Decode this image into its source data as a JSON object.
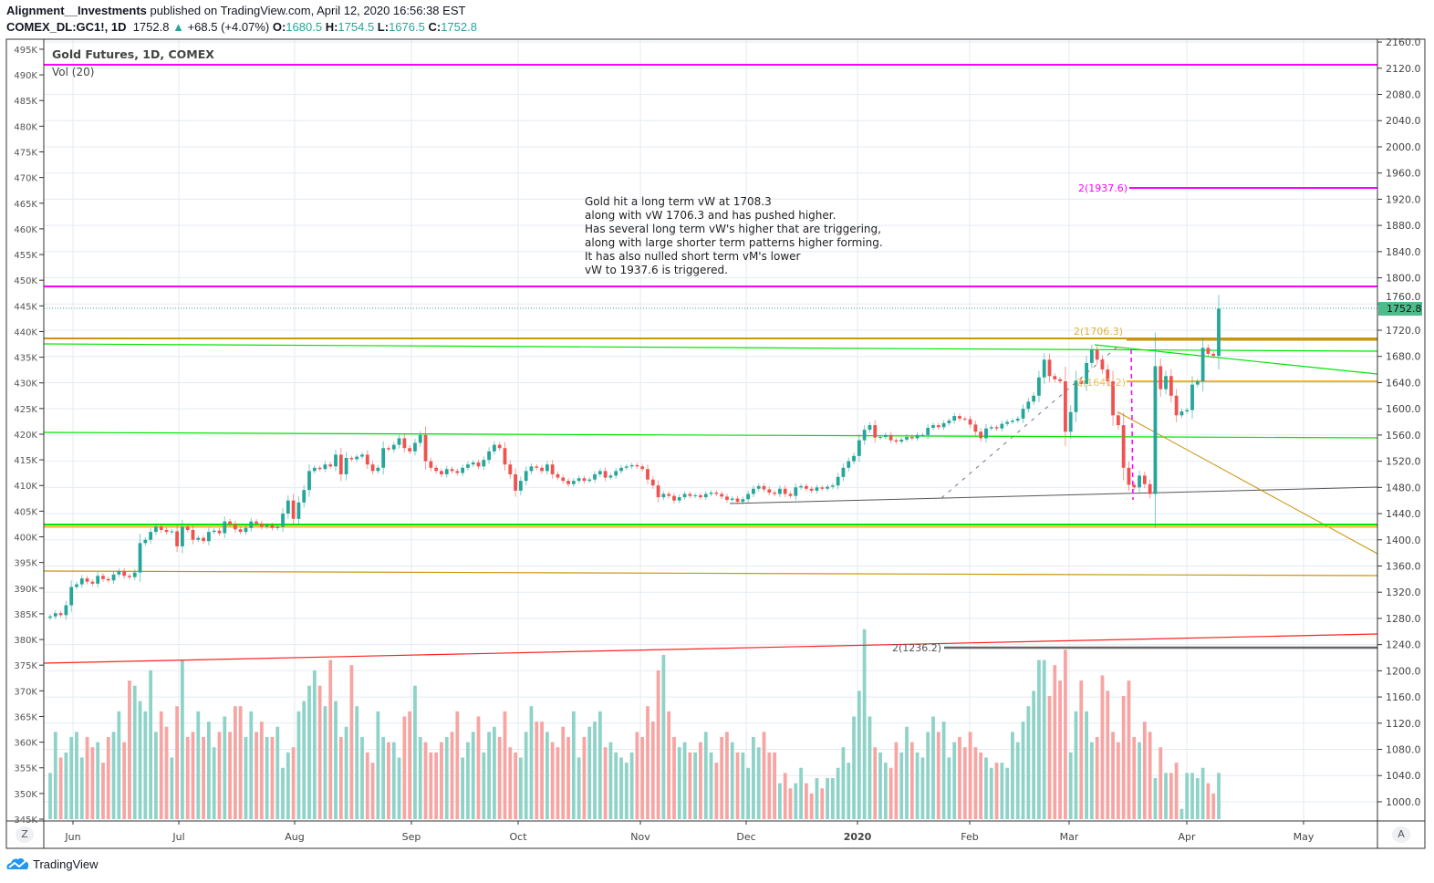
{
  "header": {
    "author": "Alignment__Investments",
    "published": "published on TradingView.com, April 12, 2020 16:56:38 EST",
    "symbol": "COMEX_DL:GC1!, 1D",
    "last": "1752.8",
    "change": "+68.5 (+4.07%)",
    "o_label": "O:",
    "o": "1680.5",
    "h_label": "H:",
    "h": "1754.5",
    "l_label": "L:",
    "l": "1676.5",
    "c_label": "C:",
    "c": "1752.8"
  },
  "legend": {
    "title": "Gold Futures, 1D, COMEX",
    "volume": "Vol (20)"
  },
  "annotation": "Gold hit a long term vW at 1708.3\nalong with vW 1706.3 and has pushed higher.\nHas several long term vW's higher that are triggering,\nalong with large shorter term patterns higher forming.\nIt has also nulled short term vM's lower\nvW to 1937.6 is triggered.",
  "level_labels": {
    "l1937": "2(1937.6)",
    "l1706": "2(1706.3)",
    "l1641": "2(1641.2)",
    "l1236": "2(1236.2)"
  },
  "price_badge": "1752.8",
  "buttons": {
    "z": "Z",
    "a": "A"
  },
  "footer": {
    "brand": "TradingView"
  },
  "colors": {
    "up": "#26a69a",
    "down": "#ef5350",
    "magenta": "#ff00ff",
    "gold": "#c8960c",
    "green_line": "#00e600",
    "red_line": "#ff2222"
  },
  "chart_data": {
    "type": "candlestick",
    "title": "Gold Futures, 1D, COMEX",
    "right_axis": {
      "ticks": [
        "2160.0",
        "2120.0",
        "2080.0",
        "2040.0",
        "2000.0",
        "1960.0",
        "1920.0",
        "1880.0",
        "1840.0",
        "1800.0",
        "1760.0",
        "1720.0",
        "1680.0",
        "1640.0",
        "1600.0",
        "1560.0",
        "1520.0",
        "1480.0",
        "1440.0",
        "1400.0",
        "1360.0",
        "1320.0",
        "1280.0",
        "1240.0",
        "1200.0",
        "1160.0",
        "1120.0",
        "1080.0",
        "1040.0",
        "1000.0"
      ],
      "range": [
        1000,
        2160
      ]
    },
    "left_axis": {
      "ticks": [
        "495K",
        "490K",
        "485K",
        "480K",
        "475K",
        "470K",
        "465K",
        "460K",
        "455K",
        "450K",
        "445K",
        "440K",
        "435K",
        "430K",
        "425K",
        "420K",
        "415K",
        "410K",
        "405K",
        "400K",
        "395K",
        "390K",
        "385K",
        "380K",
        "375K",
        "370K",
        "365K",
        "360K",
        "355K",
        "350K",
        "345K"
      ],
      "range": [
        345,
        495
      ]
    },
    "x_ticks": [
      "Jun",
      "Jul",
      "Aug",
      "Sep",
      "Oct",
      "Nov",
      "Dec",
      "2020",
      "Feb",
      "Mar",
      "Apr",
      "May"
    ],
    "grid": true,
    "closes": [
      1283,
      1288,
      1285,
      1300,
      1328,
      1332,
      1341,
      1336,
      1333,
      1345,
      1340,
      1338,
      1347,
      1352,
      1345,
      1343,
      1350,
      1395,
      1400,
      1412,
      1420,
      1415,
      1412,
      1413,
      1390,
      1420,
      1415,
      1400,
      1403,
      1398,
      1412,
      1414,
      1410,
      1428,
      1424,
      1416,
      1412,
      1418,
      1428,
      1425,
      1420,
      1422,
      1418,
      1420,
      1440,
      1460,
      1432,
      1457,
      1476,
      1505,
      1510,
      1508,
      1515,
      1512,
      1530,
      1500,
      1525,
      1523,
      1527,
      1530,
      1515,
      1505,
      1510,
      1540,
      1538,
      1545,
      1555,
      1540,
      1535,
      1548,
      1560,
      1520,
      1510,
      1505,
      1500,
      1508,
      1505,
      1502,
      1510,
      1515,
      1518,
      1512,
      1522,
      1535,
      1545,
      1540,
      1515,
      1500,
      1475,
      1490,
      1505,
      1512,
      1510,
      1505,
      1515,
      1500,
      1495,
      1490,
      1485,
      1490,
      1494,
      1490,
      1492,
      1500,
      1505,
      1495,
      1498,
      1505,
      1510,
      1512,
      1514,
      1512,
      1508,
      1492,
      1483,
      1465,
      1470,
      1467,
      1460,
      1465,
      1470,
      1467,
      1468,
      1465,
      1470,
      1472,
      1470,
      1466,
      1461,
      1463,
      1458,
      1462,
      1470,
      1478,
      1482,
      1477,
      1472,
      1470,
      1478,
      1470,
      1467,
      1480,
      1482,
      1478,
      1475,
      1480,
      1478,
      1481,
      1483,
      1496,
      1510,
      1520,
      1528,
      1552,
      1568,
      1575,
      1556,
      1557,
      1560,
      1552,
      1550,
      1553,
      1557,
      1555,
      1560,
      1560,
      1571,
      1575,
      1572,
      1578,
      1582,
      1589,
      1585,
      1584,
      1576,
      1565,
      1555,
      1570,
      1572,
      1570,
      1577,
      1580,
      1582,
      1585,
      1600,
      1611,
      1620,
      1648,
      1675,
      1650,
      1645,
      1642,
      1565,
      1595,
      1643,
      1638,
      1670,
      1690,
      1675,
      1660,
      1642,
      1590,
      1575,
      1510,
      1484,
      1480,
      1498,
      1485,
      1470,
      1665,
      1630,
      1650,
      1620,
      1590,
      1596,
      1598,
      1637,
      1642,
      1693,
      1684,
      1681,
      1752.8
    ],
    "volume_k": [
      354,
      362,
      357,
      358,
      361,
      362,
      357,
      361,
      359,
      360,
      356,
      361,
      362,
      366,
      360,
      372,
      371,
      368,
      366,
      374,
      362,
      366,
      363,
      357,
      367,
      376,
      361,
      362,
      366,
      361,
      364,
      359,
      362,
      365,
      362,
      367,
      367,
      361,
      366,
      362,
      364,
      361,
      361,
      363,
      355,
      358,
      359,
      366,
      368,
      371,
      374,
      371,
      367,
      376,
      368,
      361,
      363,
      375,
      367,
      361,
      358,
      356,
      366,
      361,
      360,
      360,
      357,
      365,
      366,
      371,
      361,
      360,
      358,
      358,
      360,
      361,
      362,
      366,
      357,
      360,
      362,
      365,
      358,
      362,
      363,
      361,
      366,
      359,
      358,
      357,
      362,
      367,
      364,
      364,
      362,
      360,
      359,
      363,
      361,
      366,
      357,
      361,
      363,
      364,
      366,
      359,
      360,
      358,
      357,
      356,
      358,
      362,
      361,
      367,
      364,
      374,
      377,
      366,
      361,
      359,
      360,
      358,
      358,
      360,
      362,
      358,
      356,
      361,
      362,
      360,
      358,
      358,
      355,
      361,
      359,
      362,
      358,
      358,
      352,
      354,
      351,
      352,
      355,
      352,
      350,
      353,
      351,
      353,
      353,
      355,
      359,
      356,
      365,
      370,
      382,
      365,
      359,
      358,
      356,
      355,
      360,
      358,
      363,
      360,
      358,
      357,
      362,
      365,
      362,
      364,
      357,
      360,
      361,
      359,
      362,
      359,
      358,
      357,
      355,
      356,
      356,
      355,
      362,
      360,
      364,
      367,
      370,
      376,
      376,
      369,
      375,
      372,
      378,
      358,
      366,
      372,
      366,
      360,
      361,
      373,
      370,
      362,
      360,
      369,
      372,
      361,
      360,
      364,
      362,
      353,
      359,
      354,
      354,
      356,
      347,
      354,
      354,
      353,
      355,
      352,
      350,
      354
    ],
    "levels": {
      "magenta": [
        2124,
        1787,
        1937.6
      ],
      "gold": [
        1708.3,
        1706.3,
        1641.2
      ],
      "gray": [
        1236.2
      ],
      "last": 1752.8
    }
  }
}
